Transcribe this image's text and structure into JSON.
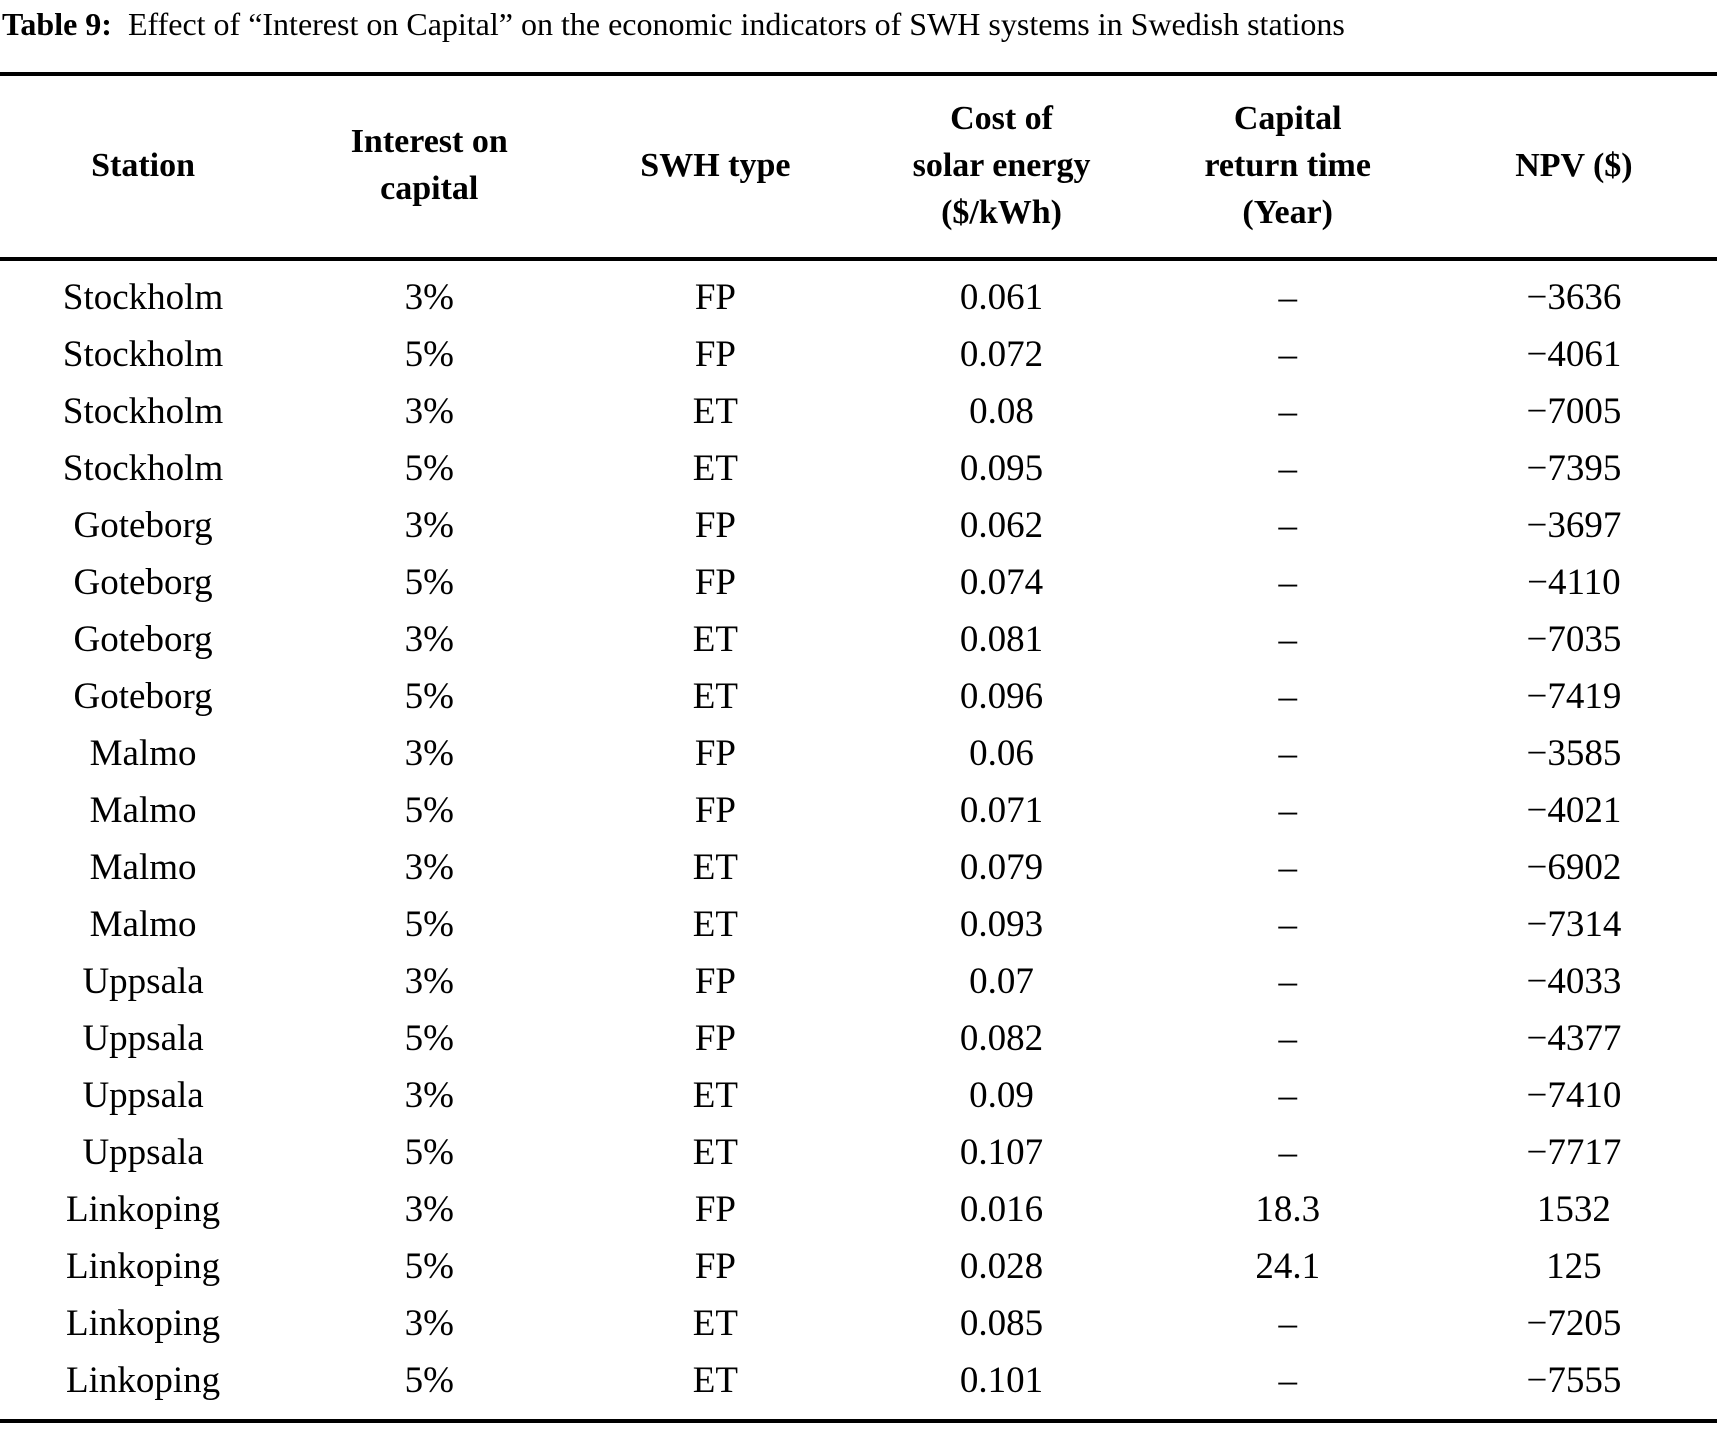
{
  "caption": {
    "label": "Table 9:",
    "text": "Effect of “Interest on Capital” on the economic indicators of SWH systems in Swedish stations"
  },
  "table": {
    "headers": [
      {
        "id": "station",
        "lines": [
          "Station"
        ]
      },
      {
        "id": "interest-on-capital",
        "lines": [
          "Interest on",
          "capital"
        ]
      },
      {
        "id": "swh-type",
        "lines": [
          "SWH type"
        ]
      },
      {
        "id": "cost-of-solar-energy",
        "lines": [
          "Cost of",
          "solar energy",
          "($/kWh)"
        ]
      },
      {
        "id": "capital-return-time",
        "lines": [
          "Capital",
          "return time",
          "(Year)"
        ]
      },
      {
        "id": "npv",
        "lines": [
          "NPV ($)"
        ]
      }
    ],
    "rows": [
      [
        "Stockholm",
        "3%",
        "FP",
        "0.061",
        "–",
        "−3636"
      ],
      [
        "Stockholm",
        "5%",
        "FP",
        "0.072",
        "–",
        "−4061"
      ],
      [
        "Stockholm",
        "3%",
        "ET",
        "0.08",
        "–",
        "−7005"
      ],
      [
        "Stockholm",
        "5%",
        "ET",
        "0.095",
        "–",
        "−7395"
      ],
      [
        "Goteborg",
        "3%",
        "FP",
        "0.062",
        "–",
        "−3697"
      ],
      [
        "Goteborg",
        "5%",
        "FP",
        "0.074",
        "–",
        "−4110"
      ],
      [
        "Goteborg",
        "3%",
        "ET",
        "0.081",
        "–",
        "−7035"
      ],
      [
        "Goteborg",
        "5%",
        "ET",
        "0.096",
        "–",
        "−7419"
      ],
      [
        "Malmo",
        "3%",
        "FP",
        "0.06",
        "–",
        "−3585"
      ],
      [
        "Malmo",
        "5%",
        "FP",
        "0.071",
        "–",
        "−4021"
      ],
      [
        "Malmo",
        "3%",
        "ET",
        "0.079",
        "–",
        "−6902"
      ],
      [
        "Malmo",
        "5%",
        "ET",
        "0.093",
        "–",
        "−7314"
      ],
      [
        "Uppsala",
        "3%",
        "FP",
        "0.07",
        "–",
        "−4033"
      ],
      [
        "Uppsala",
        "5%",
        "FP",
        "0.082",
        "–",
        "−4377"
      ],
      [
        "Uppsala",
        "3%",
        "ET",
        "0.09",
        "–",
        "−7410"
      ],
      [
        "Uppsala",
        "5%",
        "ET",
        "0.107",
        "–",
        "−7717"
      ],
      [
        "Linkoping",
        "3%",
        "FP",
        "0.016",
        "18.3",
        "1532"
      ],
      [
        "Linkoping",
        "5%",
        "FP",
        "0.028",
        "24.1",
        "125"
      ],
      [
        "Linkoping",
        "3%",
        "ET",
        "0.085",
        "–",
        "−7205"
      ],
      [
        "Linkoping",
        "5%",
        "ET",
        "0.101",
        "–",
        "−7555"
      ]
    ]
  },
  "colors": {
    "text": "#000000",
    "background": "#ffffff",
    "rule": "#000000"
  }
}
